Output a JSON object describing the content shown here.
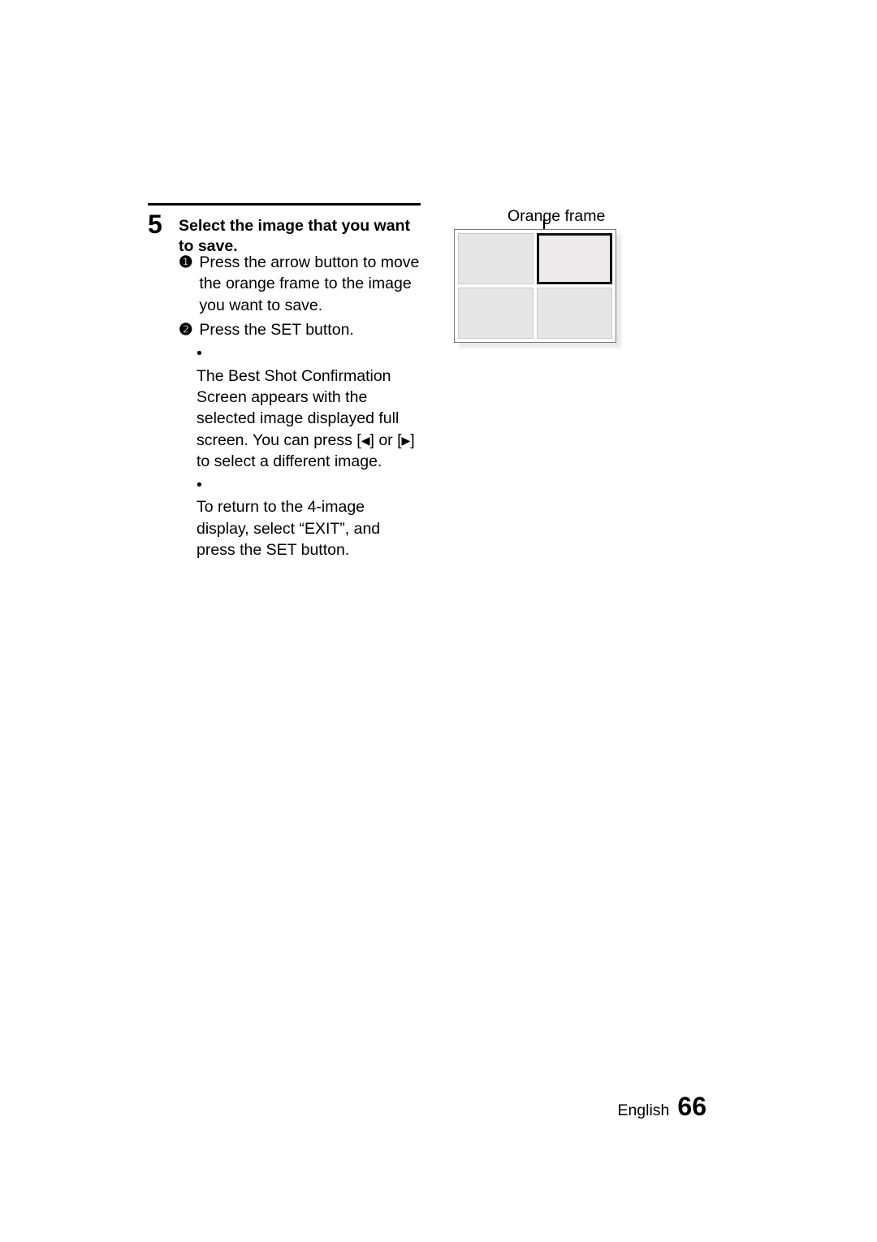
{
  "step": {
    "number": "5",
    "title": "Select the image that you want to save.",
    "sub1": {
      "marker": "❶",
      "text": "Press the arrow button to move the orange frame to the image you want to save."
    },
    "sub2": {
      "marker": "❷",
      "text": "Press the SET button.",
      "bullets": [
        {
          "dot": "•",
          "pre": "The Best Shot Confirmation Screen appears with the selected image displayed full screen. You can press [",
          "left": "◀",
          "mid": "] or [",
          "right": "▶",
          "post": "] to select a different image."
        },
        {
          "dot": "•",
          "text": "To return to the 4-image display, select “EXIT”, and press the SET button."
        }
      ]
    }
  },
  "diagram": {
    "label": "Orange frame",
    "label_fontsize": 19.5,
    "outer_border": "#7a7a7a",
    "cell_fill": "#e6e6e6",
    "cell_border": "#c9c9c9",
    "selected_border": "#111111",
    "selected_index": 1,
    "cell_count": 4
  },
  "footer": {
    "lang": "English",
    "page": "66"
  },
  "style": {
    "body_fontsize": 19.5,
    "title_fontsize": 19.5,
    "stepnum_fontsize": 32,
    "pageno_fontsize": 32,
    "text_color": "#000000",
    "bg_color": "#ffffff"
  }
}
